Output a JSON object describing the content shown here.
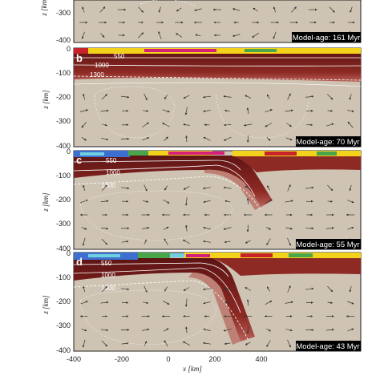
{
  "x_axis": {
    "label": "x [km]",
    "ticks": [
      "-400",
      "-200",
      "0",
      "200",
      "400"
    ]
  },
  "panels": [
    {
      "letter": "",
      "age_text": "Model-age: 161 Myr",
      "y_label": "z [km]",
      "y_ticks": [
        "-300",
        "-400"
      ],
      "isotherms": []
    },
    {
      "letter": "b",
      "age_text": "Model-age: 70 Myr",
      "y_label": "z [km]",
      "y_ticks": [
        "0",
        "-100",
        "-200",
        "-300",
        "-400"
      ],
      "isotherms": [
        "550",
        "1000",
        "1300"
      ]
    },
    {
      "letter": "c",
      "age_text": "Model-age: 55 Myr",
      "y_label": "z [km]",
      "y_ticks": [
        "0",
        "-100",
        "-200",
        "-300",
        "-400"
      ],
      "isotherms": [
        "550",
        "1000",
        "1300"
      ]
    },
    {
      "letter": "d",
      "age_text": "Model-age: 43 Myr",
      "y_label": "z [km]",
      "y_ticks": [
        "0",
        "-100",
        "-200",
        "-300",
        "-400"
      ],
      "isotherms": [
        "550",
        "1000",
        "1300"
      ]
    }
  ],
  "colors": {
    "background": "#cfc4b3",
    "mantle": "#c9bda9",
    "lithosphere": "#7a1f1f",
    "hot_rim": "#b3473b",
    "crust_yellow": "#f2d21b",
    "crust_magenta": "#d61f7a",
    "crust_green": "#4aa64a",
    "crust_blue": "#3c6fd0",
    "crust_cyan": "#6fd0e0",
    "arrow": "#333333"
  }
}
